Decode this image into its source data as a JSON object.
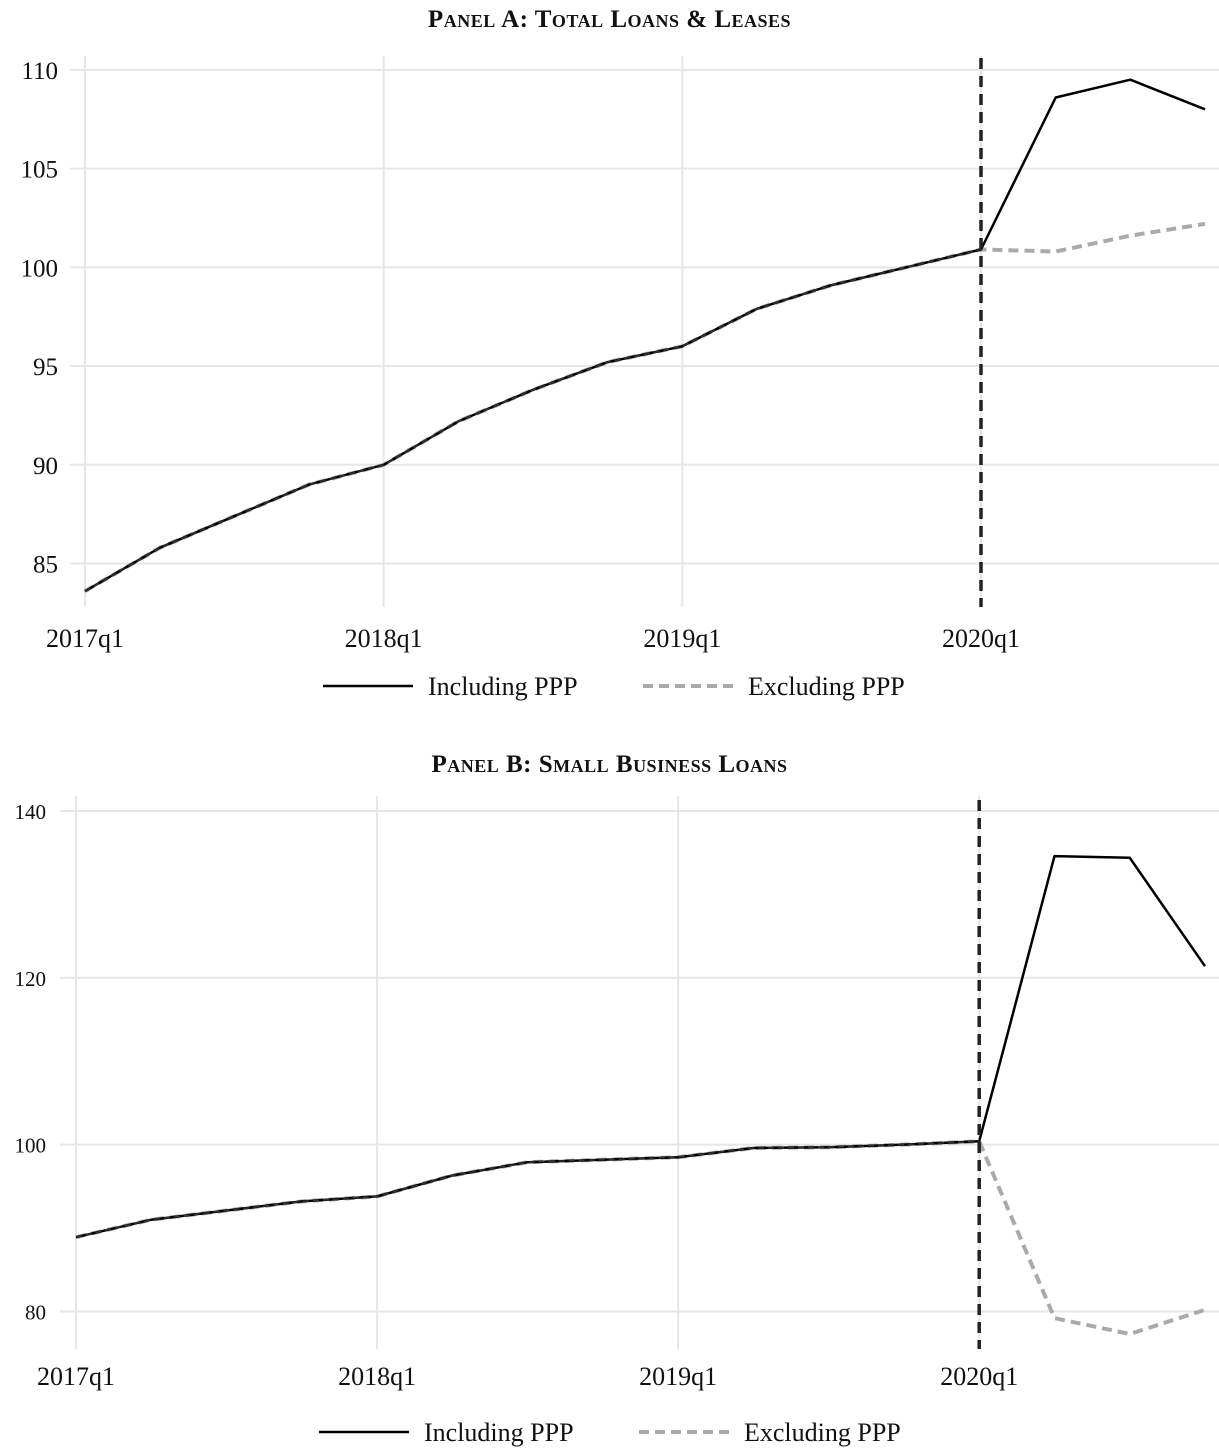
{
  "chart_data": [
    {
      "type": "line",
      "title": "Panel A: Total Loans & Leases",
      "x": [
        "2017q1",
        "2017q2",
        "2017q3",
        "2017q4",
        "2018q1",
        "2018q2",
        "2018q3",
        "2018q4",
        "2019q1",
        "2019q2",
        "2019q3",
        "2019q4",
        "2020q1",
        "2020q2",
        "2020q3",
        "2020q4"
      ],
      "x_tick_labels": [
        "2017q1",
        "2018q1",
        "2019q1",
        "2020q1"
      ],
      "y_ticks": [
        85,
        90,
        95,
        100,
        105,
        110
      ],
      "ylim": [
        82.8,
        110.7
      ],
      "vline_at": "2020q1",
      "series": [
        {
          "name": "Including PPP",
          "color": "#000000",
          "style": "solid",
          "values": [
            83.6,
            85.8,
            87.4,
            89.0,
            90.0,
            92.2,
            93.8,
            95.2,
            96.0,
            97.9,
            99.1,
            100.0,
            100.9,
            108.6,
            109.5,
            108.0
          ]
        },
        {
          "name": "Excluding PPP",
          "color": "#aaaaaa",
          "style": "dashed",
          "values": [
            83.6,
            85.8,
            87.4,
            89.0,
            90.0,
            92.2,
            93.8,
            95.2,
            96.0,
            97.9,
            99.1,
            100.0,
            100.9,
            100.8,
            101.6,
            102.2
          ]
        }
      ],
      "legend_position": "bottom",
      "grid": true
    },
    {
      "type": "line",
      "title": "Panel B: Small Business Loans",
      "x": [
        "2017q1",
        "2017q2",
        "2017q3",
        "2017q4",
        "2018q1",
        "2018q2",
        "2018q3",
        "2018q4",
        "2019q1",
        "2019q2",
        "2019q3",
        "2019q4",
        "2020q1",
        "2020q2",
        "2020q3",
        "2020q4"
      ],
      "x_tick_labels": [
        "2017q1",
        "2018q1",
        "2019q1",
        "2020q1"
      ],
      "y_ticks": [
        80,
        100,
        120,
        140
      ],
      "ylim": [
        75.5,
        141.8
      ],
      "vline_at": "2020q1",
      "series": [
        {
          "name": "Including PPP",
          "color": "#000000",
          "style": "solid",
          "values": [
            88.9,
            91.0,
            92.1,
            93.2,
            93.8,
            96.3,
            97.9,
            98.2,
            98.5,
            99.6,
            99.7,
            100.0,
            100.4,
            134.6,
            134.4,
            121.4
          ]
        },
        {
          "name": "Excluding PPP",
          "color": "#aaaaaa",
          "style": "dashed",
          "values": [
            88.9,
            91.0,
            92.1,
            93.2,
            93.8,
            96.3,
            97.9,
            98.2,
            98.5,
            99.6,
            99.7,
            100.0,
            100.4,
            79.2,
            77.3,
            80.2
          ]
        }
      ],
      "legend_position": "bottom",
      "grid": true
    }
  ]
}
